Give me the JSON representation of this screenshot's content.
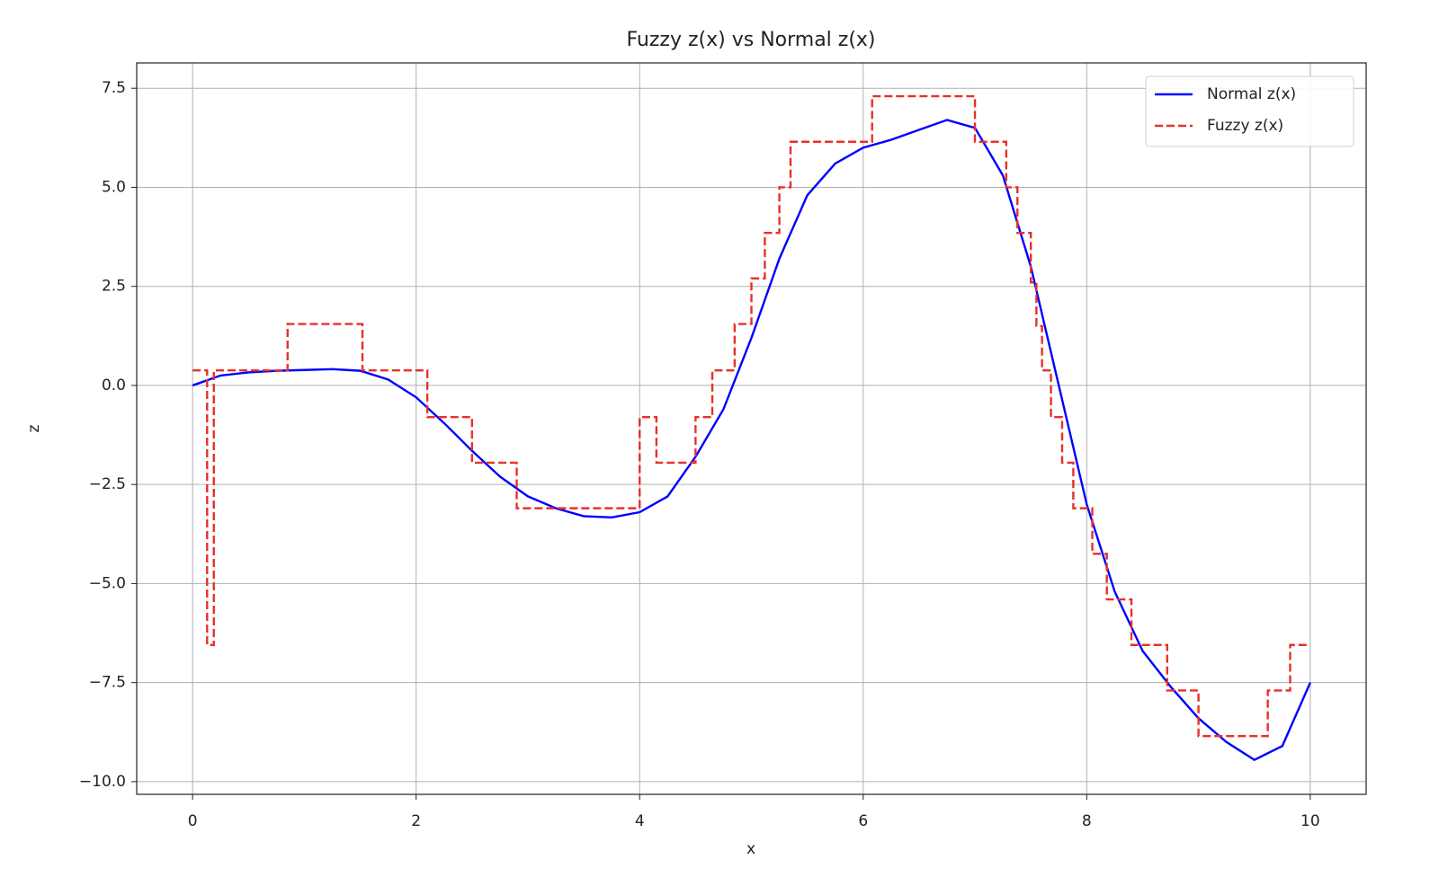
{
  "chart_data": {
    "type": "line",
    "title": "Fuzzy z(x) vs Normal z(x)",
    "x_label": "x",
    "y_label": "z",
    "xlim": [
      -0.5,
      10.5
    ],
    "ylim": [
      -10.32,
      8.14
    ],
    "xticks": [
      0,
      2,
      4,
      6,
      8,
      10
    ],
    "yticks": [
      {
        "value": -10,
        "label": "−10.0"
      },
      {
        "value": -7.5,
        "label": "−7.5"
      },
      {
        "value": -5,
        "label": "−5.0"
      },
      {
        "value": -2.5,
        "label": "−2.5"
      },
      {
        "value": 0,
        "label": "0.0"
      },
      2.5,
      {
        "value": 5,
        "label": "5.0"
      },
      7.5
    ],
    "grid": true,
    "legend": "upper right",
    "series": [
      {
        "name": "Normal z(x)",
        "color": "#0000ff",
        "dash": "solid",
        "drawstyle": "default",
        "x": [
          0,
          0.25,
          0.5,
          0.75,
          1,
          1.25,
          1.5,
          1.75,
          2,
          2.25,
          2.5,
          2.75,
          3,
          3.25,
          3.5,
          3.75,
          4,
          4.25,
          4.5,
          4.75,
          5,
          5.25,
          5.5,
          5.75,
          6,
          6.25,
          6.5,
          6.75,
          7,
          7.25,
          7.5,
          7.75,
          8,
          8.25,
          8.5,
          8.75,
          9,
          9.25,
          9.5,
          9.75,
          10
        ],
        "values": [
          0,
          0.25,
          0.33,
          0.37,
          0.39,
          0.41,
          0.37,
          0.15,
          -0.3,
          -0.95,
          -1.65,
          -2.3,
          -2.8,
          -3.1,
          -3.3,
          -3.33,
          -3.2,
          -2.8,
          -1.8,
          -0.6,
          1.2,
          3.2,
          4.8,
          5.6,
          6.0,
          6.2,
          6.45,
          6.7,
          6.5,
          5.3,
          3.0,
          0.0,
          -3.0,
          -5.2,
          -6.7,
          -7.6,
          -8.4,
          -9.0,
          -9.45,
          -9.1,
          -7.5
        ]
      },
      {
        "name": "Fuzzy z(x)",
        "color": "#e8302a",
        "dash": "dashed",
        "drawstyle": "steps-post",
        "x": [
          0,
          0.13,
          0.19,
          0.85,
          1.52,
          2.1,
          2.5,
          2.9,
          4.0,
          4.15,
          4.5,
          4.65,
          4.85,
          5.0,
          5.12,
          5.25,
          5.35,
          6.08,
          7.0,
          7.28,
          7.38,
          7.5,
          7.55,
          7.6,
          7.68,
          7.78,
          7.88,
          8.05,
          8.18,
          8.4,
          8.72,
          9.0,
          9.62,
          9.82,
          10.0
        ],
        "values": [
          0.38,
          -6.55,
          0.38,
          1.55,
          0.38,
          -0.8,
          -1.95,
          -3.1,
          -0.8,
          -1.95,
          -0.8,
          0.38,
          1.55,
          2.7,
          3.85,
          5.0,
          6.15,
          7.3,
          6.15,
          5.0,
          3.85,
          2.6,
          1.5,
          0.38,
          -0.8,
          -1.95,
          -3.1,
          -4.25,
          -5.4,
          -6.55,
          -7.7,
          -8.85,
          -7.7,
          -6.55,
          -6.55
        ]
      }
    ]
  }
}
